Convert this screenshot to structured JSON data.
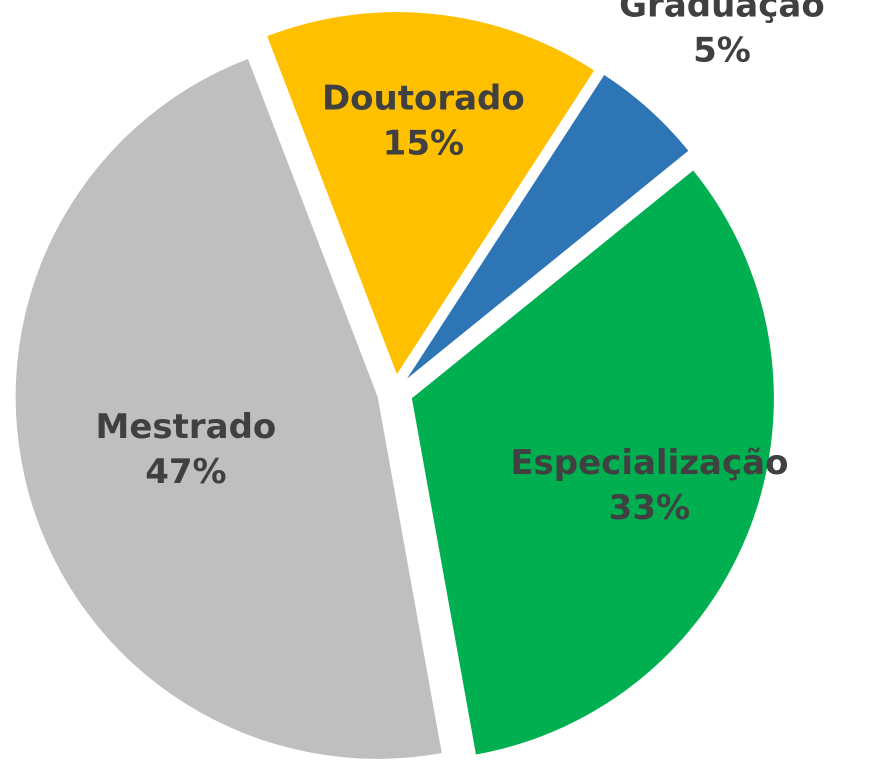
{
  "chart_data": {
    "type": "pie",
    "categories": [
      "Doutorado",
      "Graduação",
      "Especialização",
      "Mestrado"
    ],
    "values": [
      15,
      5,
      33,
      47
    ],
    "value_labels": [
      "15%",
      "5%",
      "33%",
      "47%"
    ],
    "colors": [
      "#ffc000",
      "#2e75b6",
      "#00b050",
      "#bfbfbf"
    ]
  }
}
